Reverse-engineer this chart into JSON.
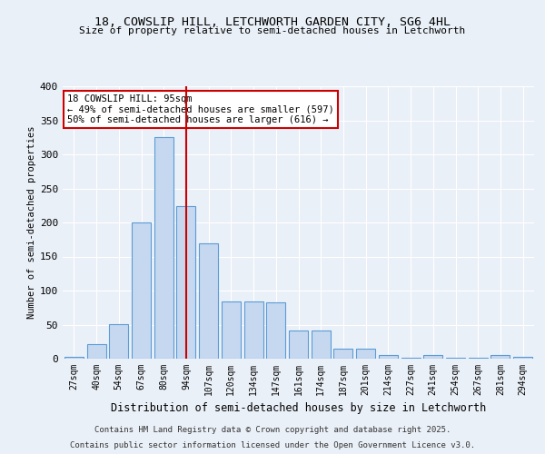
{
  "title1": "18, COWSLIP HILL, LETCHWORTH GARDEN CITY, SG6 4HL",
  "title2": "Size of property relative to semi-detached houses in Letchworth",
  "xlabel": "Distribution of semi-detached houses by size in Letchworth",
  "ylabel": "Number of semi-detached properties",
  "bar_labels": [
    "27sqm",
    "40sqm",
    "54sqm",
    "67sqm",
    "80sqm",
    "94sqm",
    "107sqm",
    "120sqm",
    "134sqm",
    "147sqm",
    "161sqm",
    "174sqm",
    "187sqm",
    "201sqm",
    "214sqm",
    "227sqm",
    "241sqm",
    "254sqm",
    "267sqm",
    "281sqm",
    "294sqm"
  ],
  "bar_values": [
    3,
    21,
    51,
    200,
    325,
    224,
    169,
    84,
    84,
    83,
    42,
    42,
    15,
    15,
    6,
    2,
    6,
    1,
    1,
    6,
    3
  ],
  "bar_color": "#c5d8f0",
  "bar_edge_color": "#5b9bd5",
  "property_bin_index": 5,
  "vline_color": "#cc0000",
  "annotation_title": "18 COWSLIP HILL: 95sqm",
  "annotation_line1": "← 49% of semi-detached houses are smaller (597)",
  "annotation_line2": "50% of semi-detached houses are larger (616) →",
  "annotation_box_color": "#cc0000",
  "ylim": [
    0,
    400
  ],
  "yticks": [
    0,
    50,
    100,
    150,
    200,
    250,
    300,
    350,
    400
  ],
  "footer1": "Contains HM Land Registry data © Crown copyright and database right 2025.",
  "footer2": "Contains public sector information licensed under the Open Government Licence v3.0.",
  "bg_color": "#eaf0f8",
  "plot_bg_color": "#eaf0f8"
}
